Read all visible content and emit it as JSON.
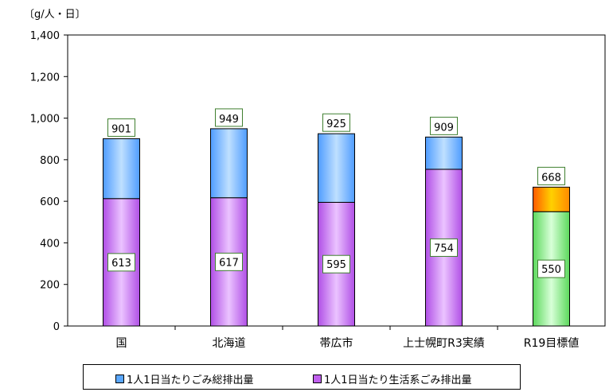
{
  "chart_data": {
    "type": "bar",
    "stacked": true,
    "unit_label": "〔g/人・日〕",
    "categories": [
      "国",
      "北海道",
      "帯広市",
      "上士幌町R3実績",
      "R19目標値"
    ],
    "totals": [
      901,
      949,
      925,
      909,
      668
    ],
    "living_values": [
      613,
      617,
      595,
      754,
      550
    ],
    "ylim": [
      0,
      1400
    ],
    "yticks": [
      "0",
      "200",
      "400",
      "600",
      "800",
      "1,000",
      "1,200",
      "1,400"
    ],
    "grid": false,
    "legend_position": "bottom",
    "series": [
      {
        "name": "1人1日当たりごみ総排出量",
        "color": "#5aa7ff"
      },
      {
        "name": "1人1日当たり生活系ごみ排出量",
        "color": "#c060ee"
      }
    ],
    "colors": {
      "total_fill": "#6cb2ff",
      "living_fill": "#c46af0",
      "target_total_fill": "#ffb000",
      "target_living_fill": "#7fea7f",
      "label_border": "#3f7f2f"
    }
  }
}
